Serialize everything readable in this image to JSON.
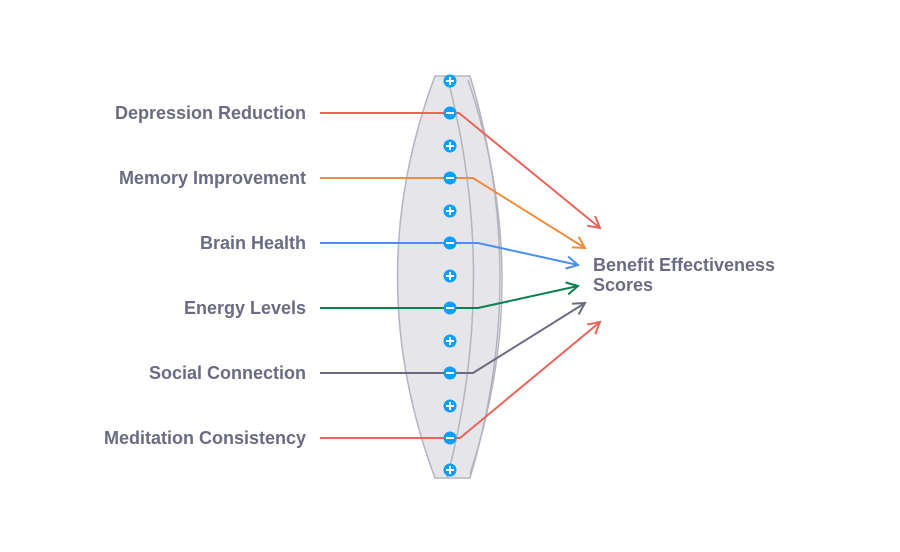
{
  "diagram": {
    "inputs": [
      {
        "label": "Depression Reduction",
        "color": "#e8655a"
      },
      {
        "label": "Memory Improvement",
        "color": "#f28c3c"
      },
      {
        "label": "Brain Health",
        "color": "#4a8ff5"
      },
      {
        "label": "Energy Levels",
        "color": "#0a8050"
      },
      {
        "label": "Social Connection",
        "color": "#6b6b80"
      },
      {
        "label": "Meditation Consistency",
        "color": "#e8655a"
      }
    ],
    "output": {
      "line1": "Benefit Effectiveness",
      "line2": "Scores"
    },
    "lens_fill": "#e6e5ea",
    "lens_stroke": "#b5b4be",
    "button_color": "#0aa0f5",
    "icons": {
      "expand": "plus-circle-icon",
      "collapse": "minus-circle-icon"
    }
  }
}
